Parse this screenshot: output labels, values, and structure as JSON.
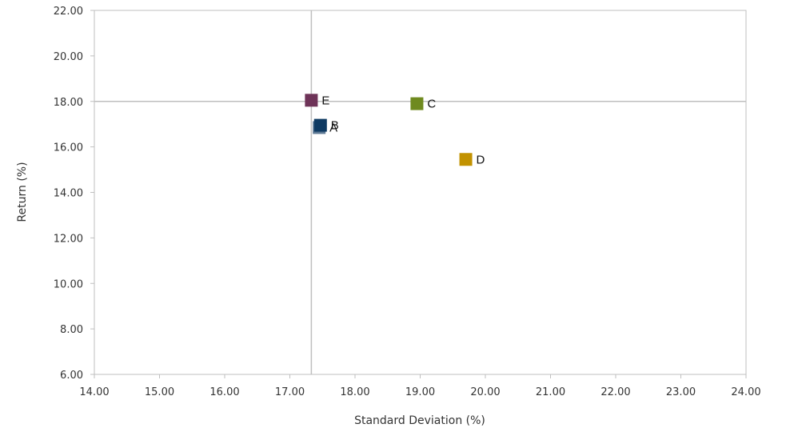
{
  "chart_data": {
    "type": "scatter",
    "title": "",
    "xlabel": "Standard Deviation (%)",
    "ylabel": "Return (%)",
    "xlim": [
      14,
      24
    ],
    "ylim": [
      6,
      22
    ],
    "x_ticks": [
      "14.00",
      "15.00",
      "16.00",
      "17.00",
      "18.00",
      "19.00",
      "20.00",
      "21.00",
      "22.00",
      "23.00",
      "24.00"
    ],
    "y_ticks": [
      "6.00",
      "8.00",
      "10.00",
      "12.00",
      "14.00",
      "16.00",
      "18.00",
      "20.00",
      "22.00"
    ],
    "crosshair": {
      "x": 17.33,
      "y": 18.0
    },
    "grid": false,
    "legend": "none",
    "points": [
      {
        "label": "A",
        "x": 17.45,
        "y": 16.85,
        "color": "#5E7A95"
      },
      {
        "label": "B",
        "x": 17.47,
        "y": 16.95,
        "color": "#0E3A62"
      },
      {
        "label": "C",
        "x": 18.95,
        "y": 17.9,
        "color": "#6F8A1F"
      },
      {
        "label": "D",
        "x": 19.7,
        "y": 15.45,
        "color": "#C29200"
      },
      {
        "label": "E",
        "x": 17.33,
        "y": 18.05,
        "color": "#6E3358"
      }
    ]
  }
}
